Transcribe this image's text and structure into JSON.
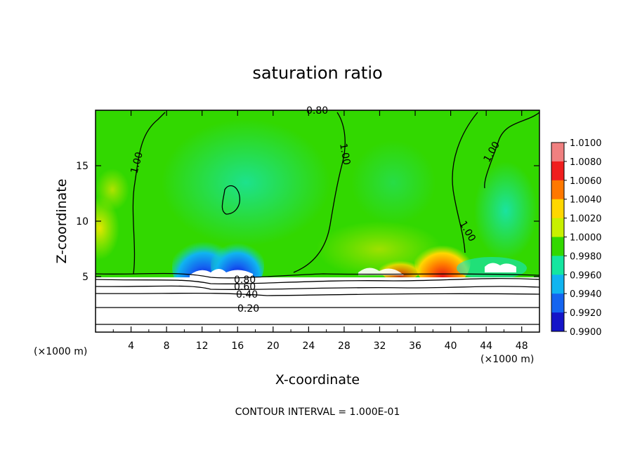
{
  "chart_data": {
    "type": "heatmap",
    "title": "saturation ratio",
    "xlabel": "X-coordinate",
    "ylabel": "Z-coordinate",
    "x_unit_left": "(×1000 m)",
    "x_unit_right": "(×1000 m)",
    "xlim": [
      0,
      50
    ],
    "ylim": [
      0,
      20
    ],
    "x_ticks": [
      "4",
      "8",
      "12",
      "16",
      "20",
      "24",
      "28",
      "32",
      "36",
      "40",
      "44",
      "48"
    ],
    "x_tick_values": [
      4,
      8,
      12,
      16,
      20,
      24,
      28,
      32,
      36,
      40,
      44,
      48
    ],
    "y_ticks": [
      "5",
      "10",
      "15"
    ],
    "y_tick_values": [
      5,
      10,
      15
    ],
    "footer": "CONTOUR INTERVAL = 1.000E-01",
    "colorbar": {
      "labels": [
        "1.0100",
        "1.0080",
        "1.0060",
        "1.0040",
        "1.0020",
        "1.0000",
        "0.9980",
        "0.9960",
        "0.9940",
        "0.9920",
        "0.9900"
      ],
      "colors": [
        "#f08080",
        "#f01e1e",
        "#ff7800",
        "#ffd700",
        "#c8f000",
        "#32d800",
        "#14e6a0",
        "#10b4f0",
        "#1464f0",
        "#1414c8",
        "#6414a0"
      ]
    },
    "contour_labels": [
      "0.80",
      "1.00",
      "1.00",
      "1.00",
      "1.00",
      "0.80",
      "0.60",
      "0.40",
      "0.20"
    ],
    "contour_levels": [
      0.2,
      0.4,
      0.6,
      0.8,
      1.0
    ],
    "dominant_field_value": 1.0
  }
}
